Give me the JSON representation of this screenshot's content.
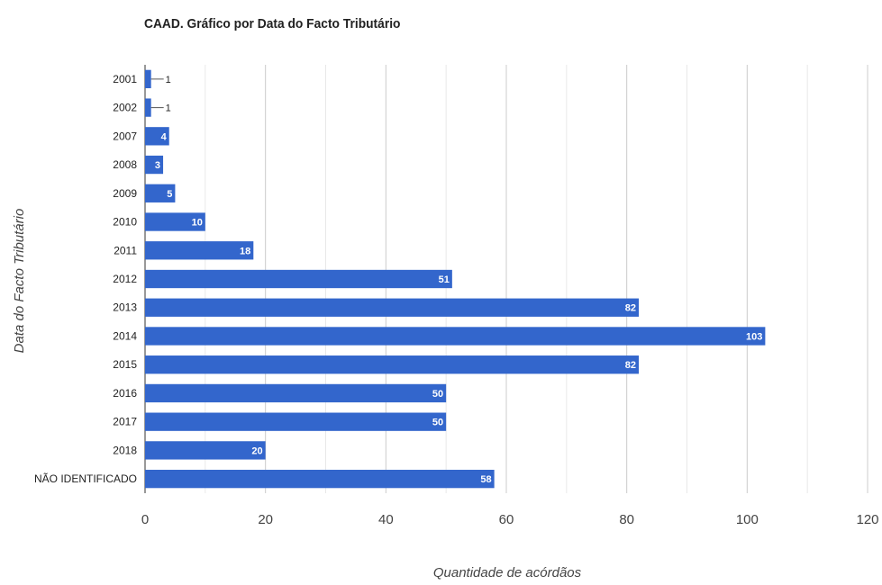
{
  "chart_data": {
    "type": "bar",
    "orientation": "horizontal",
    "title": "CAAD. Gráfico por Data do Facto Tributário",
    "xlabel": "Quantidade de acórdãos",
    "ylabel": "Data do Facto Tributário",
    "categories": [
      "2001",
      "2002",
      "2007",
      "2008",
      "2009",
      "2010",
      "2011",
      "2012",
      "2013",
      "2014",
      "2015",
      "2016",
      "2017",
      "2018",
      "NÃO IDENTIFICADO"
    ],
    "values": [
      1,
      1,
      4,
      3,
      5,
      10,
      18,
      51,
      82,
      103,
      82,
      50,
      50,
      20,
      58
    ],
    "xlim": [
      0,
      120
    ],
    "xticks": [
      0,
      20,
      40,
      60,
      80,
      100,
      120
    ],
    "grid": true,
    "legend": "none",
    "bar_color": "#3366cc"
  }
}
